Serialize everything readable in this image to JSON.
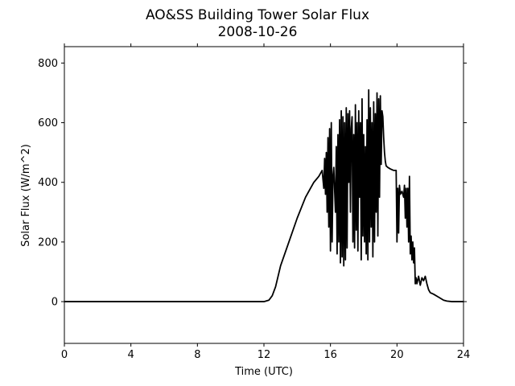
{
  "chart_data": {
    "type": "line",
    "title": "AO&SS Building Tower Solar Flux",
    "subtitle": "2008-10-26",
    "xlabel": "Time (UTC)",
    "ylabel": "Solar Flux (W/m^2)",
    "xlim": [
      0,
      24
    ],
    "ylim": [
      -140,
      855
    ],
    "xticks": [
      0,
      4,
      8,
      12,
      16,
      20,
      24
    ],
    "yticks": [
      0,
      200,
      400,
      600,
      800
    ],
    "grid": false,
    "line_color": "#000000",
    "series": [
      {
        "x": [
          0,
          12.0,
          12.3,
          12.5,
          12.7,
          13.0,
          13.5,
          14.0,
          14.5,
          15.0,
          15.3,
          15.5,
          15.6,
          15.65,
          15.7,
          15.75,
          15.8,
          15.85,
          15.9,
          15.95,
          16.0,
          16.05,
          16.1,
          16.15,
          16.2,
          16.3,
          16.35,
          16.4,
          16.45,
          16.5,
          16.55,
          16.6,
          16.65,
          16.7,
          16.75,
          16.8,
          16.85,
          16.9,
          16.95,
          17.0,
          17.05,
          17.1,
          17.15,
          17.2,
          17.25,
          17.3,
          17.35,
          17.4,
          17.45,
          17.5,
          17.55,
          17.6,
          17.65,
          17.7,
          17.75,
          17.8,
          17.85,
          17.9,
          17.95,
          18.0,
          18.05,
          18.1,
          18.15,
          18.2,
          18.25,
          18.3,
          18.35,
          18.4,
          18.45,
          18.5,
          18.55,
          18.6,
          18.65,
          18.7,
          18.75,
          18.8,
          18.85,
          18.9,
          18.95,
          19.0,
          19.05,
          19.1,
          19.15,
          19.2,
          19.25,
          19.3,
          19.35,
          19.45,
          19.6,
          19.8,
          19.95,
          20.0,
          20.05,
          20.1,
          20.15,
          20.2,
          20.3,
          20.4,
          20.45,
          20.5,
          20.55,
          20.6,
          20.65,
          20.7,
          20.75,
          20.8,
          20.85,
          20.9,
          20.95,
          21.0,
          21.05,
          21.1,
          21.15,
          21.2,
          21.3,
          21.4,
          21.5,
          21.6,
          21.7,
          21.8,
          21.9,
          22.0,
          22.2,
          22.5,
          22.8,
          23.0,
          23.3,
          23.6,
          24.0
        ],
        "y": [
          0,
          0,
          5,
          20,
          50,
          120,
          200,
          280,
          350,
          400,
          420,
          440,
          380,
          480,
          360,
          500,
          300,
          550,
          250,
          580,
          170,
          600,
          200,
          420,
          450,
          300,
          520,
          160,
          560,
          200,
          610,
          130,
          640,
          150,
          620,
          120,
          600,
          140,
          650,
          180,
          630,
          400,
          640,
          300,
          580,
          620,
          200,
          560,
          180,
          660,
          240,
          600,
          170,
          640,
          350,
          600,
          140,
          680,
          220,
          560,
          200,
          520,
          160,
          610,
          140,
          710,
          200,
          650,
          250,
          600,
          150,
          670,
          200,
          630,
          300,
          700,
          220,
          680,
          350,
          690,
          460,
          640,
          620,
          550,
          500,
          470,
          455,
          450,
          445,
          440,
          440,
          200,
          380,
          230,
          390,
          360,
          370,
          350,
          390,
          280,
          380,
          250,
          380,
          200,
          420,
          160,
          220,
          140,
          200,
          130,
          180,
          60,
          80,
          60,
          85,
          55,
          80,
          70,
          85,
          60,
          40,
          30,
          25,
          15,
          5,
          2,
          0,
          0,
          0
        ]
      }
    ]
  }
}
